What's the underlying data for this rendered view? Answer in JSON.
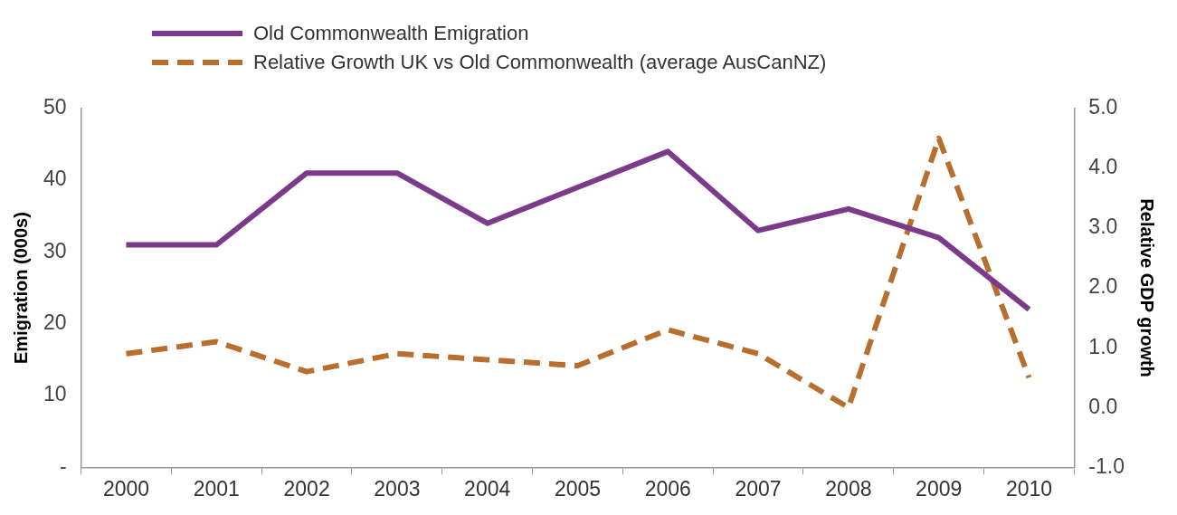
{
  "chart_data": {
    "type": "line",
    "categories": [
      "2000",
      "2001",
      "2002",
      "2003",
      "2004",
      "2005",
      "2006",
      "2007",
      "2008",
      "2009",
      "2010"
    ],
    "ylabel": "Emigration (000s)",
    "y2label": "Relative GDP growth",
    "series": [
      {
        "name": "Old Commonwealth Emigration",
        "color": "#7b3a8a",
        "values": [
          31,
          31,
          41,
          41,
          34,
          39,
          44,
          33,
          36,
          32,
          22
        ],
        "line_style": "solid"
      },
      {
        "name": "Relative Growth UK vs Old Commonwealth (average AusCanNZ)",
        "color": "#b86f2e",
        "axis": "y2",
        "values": [
          0.9,
          1.1,
          0.6,
          0.9,
          0.8,
          0.7,
          1.3,
          0.9,
          0.0,
          4.5,
          0.5
        ],
        "line_style": "dashed"
      }
    ],
    "ylim": [
      0,
      50
    ],
    "yticks": [
      {
        "value": 0,
        "label": "-"
      },
      10,
      20,
      30,
      40,
      50
    ],
    "y2lim": [
      -1,
      5
    ],
    "y2ticks": [
      {
        "value": -1,
        "label": "-1.0"
      },
      {
        "value": 0,
        "label": "0.0"
      },
      {
        "value": 1,
        "label": "1.0"
      },
      {
        "value": 2,
        "label": "2.0"
      },
      {
        "value": 3,
        "label": "3.0"
      },
      {
        "value": 4,
        "label": "4.0"
      },
      {
        "value": 5,
        "label": "5.0"
      }
    ],
    "grid": false,
    "legend": "top left",
    "marker": "none"
  }
}
